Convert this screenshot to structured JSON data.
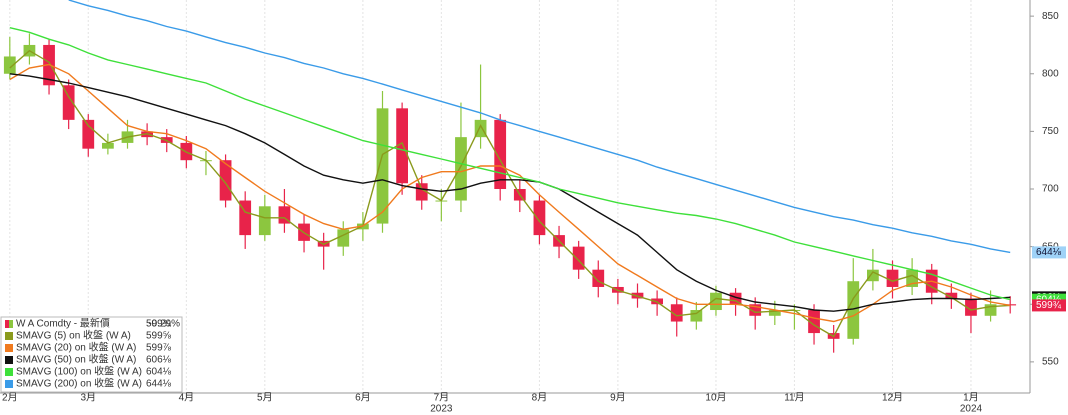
{
  "chart_data": {
    "type": "candlestick",
    "categories": [
      "2月",
      null,
      null,
      null,
      "3月",
      null,
      null,
      null,
      null,
      "4月",
      null,
      null,
      null,
      "5月",
      null,
      null,
      null,
      null,
      "6月",
      null,
      null,
      null,
      "7月",
      null,
      null,
      null,
      null,
      "8月",
      null,
      null,
      null,
      "9月",
      null,
      null,
      null,
      null,
      "10月",
      null,
      null,
      null,
      "11月",
      null,
      null,
      null,
      null,
      "12月",
      null,
      null,
      null,
      "1月",
      null,
      null
    ],
    "x_groups": [
      {
        "label": "2023",
        "category": "7月"
      },
      {
        "label": "2024",
        "category": "1月"
      }
    ],
    "candles": {
      "name": "W A Comdty - 最新價",
      "legend_value": "599¾",
      "change": "-0.29%",
      "up_color": "#8cc63f",
      "down_color": "#e8234a",
      "open": [
        800,
        815,
        825,
        790,
        760,
        735,
        740,
        750,
        745,
        740,
        725,
        725,
        690,
        660,
        685,
        670,
        655,
        650,
        665,
        670,
        770,
        705,
        690,
        690,
        745,
        760,
        700,
        690,
        660,
        650,
        630,
        615,
        610,
        605,
        600,
        585,
        595,
        610,
        600,
        590,
        595,
        595,
        575,
        570,
        620,
        630,
        615,
        630,
        610,
        605,
        590,
        600
      ],
      "high": [
        832,
        835,
        830,
        795,
        765,
        748,
        760,
        757,
        752,
        746,
        733,
        730,
        698,
        695,
        700,
        678,
        662,
        672,
        680,
        785,
        775,
        712,
        700,
        775,
        808,
        765,
        708,
        695,
        668,
        655,
        638,
        622,
        618,
        612,
        606,
        602,
        616,
        614,
        606,
        603,
        600,
        600,
        582,
        640,
        648,
        638,
        640,
        635,
        618,
        610,
        612,
        607
      ],
      "low": [
        795,
        808,
        782,
        752,
        728,
        730,
        735,
        738,
        732,
        718,
        712,
        684,
        648,
        655,
        662,
        645,
        630,
        642,
        655,
        662,
        695,
        682,
        672,
        680,
        735,
        690,
        680,
        652,
        640,
        622,
        606,
        600,
        597,
        590,
        572,
        578,
        590,
        590,
        578,
        582,
        578,
        565,
        558,
        565,
        612,
        605,
        608,
        600,
        596,
        575,
        585,
        592
      ],
      "close": [
        815,
        825,
        790,
        760,
        735,
        740,
        750,
        745,
        740,
        725,
        725,
        690,
        660,
        685,
        670,
        655,
        650,
        665,
        670,
        770,
        705,
        690,
        690,
        745,
        760,
        700,
        690,
        660,
        650,
        630,
        615,
        610,
        605,
        600,
        585,
        595,
        610,
        600,
        590,
        595,
        595,
        575,
        570,
        620,
        630,
        615,
        630,
        610,
        605,
        590,
        600,
        599
      ]
    },
    "series": [
      {
        "name": "SMAVG (5)  on 收盤 (W A)",
        "legend_value": "599⅝",
        "color": "#8a9a1c",
        "values": [
          805,
          820,
          810,
          780,
          755,
          740,
          745,
          748,
          742,
          732,
          725,
          705,
          680,
          675,
          675,
          662,
          652,
          660,
          668,
          730,
          740,
          700,
          690,
          720,
          755,
          725,
          695,
          672,
          655,
          638,
          620,
          612,
          607,
          602,
          590,
          592,
          605,
          603,
          593,
          594,
          595,
          582,
          572,
          605,
          628,
          620,
          625,
          615,
          606,
          595,
          598,
          599
        ]
      },
      {
        "name": "SMAVG (20)  on 收盤 (W A)",
        "legend_value": "599⅞",
        "color": "#f07a1e",
        "values": [
          795,
          805,
          808,
          800,
          785,
          770,
          755,
          750,
          748,
          742,
          735,
          722,
          710,
          698,
          688,
          678,
          670,
          665,
          668,
          680,
          700,
          710,
          715,
          715,
          720,
          720,
          712,
          695,
          680,
          665,
          650,
          635,
          625,
          615,
          605,
          600,
          600,
          600,
          598,
          595,
          592,
          588,
          585,
          590,
          600,
          612,
          618,
          620,
          615,
          608,
          602,
          599
        ]
      },
      {
        "name": "SMAVG (50)  on 收盤 (W A)",
        "legend_value": "606⅛",
        "color": "#111111",
        "values": [
          800,
          798,
          795,
          792,
          788,
          784,
          780,
          775,
          770,
          765,
          760,
          755,
          748,
          740,
          730,
          720,
          712,
          708,
          705,
          708,
          703,
          700,
          698,
          700,
          705,
          708,
          708,
          706,
          700,
          690,
          680,
          670,
          660,
          645,
          630,
          620,
          612,
          606,
          602,
          600,
          598,
          595,
          594,
          596,
          600,
          602,
          604,
          605,
          605,
          604,
          605,
          606
        ]
      },
      {
        "name": "SMAVG (100)  on 收盤 (W A)",
        "legend_value": "604⅛",
        "color": "#3ee03a",
        "values": [
          840,
          836,
          830,
          825,
          818,
          812,
          808,
          804,
          800,
          796,
          792,
          785,
          778,
          772,
          766,
          760,
          754,
          748,
          742,
          738,
          734,
          730,
          726,
          722,
          718,
          714,
          710,
          706,
          700,
          696,
          692,
          688,
          685,
          682,
          679,
          677,
          674,
          670,
          665,
          660,
          654,
          650,
          646,
          642,
          638,
          634,
          630,
          626,
          620,
          614,
          608,
          604
        ]
      },
      {
        "name": "SMAVG (200)  on 收盤 (W A)",
        "legend_value": "644⅛",
        "color": "#3a9be8",
        "values": [
          null,
          null,
          null,
          864,
          859,
          855,
          850,
          846,
          841,
          837,
          832,
          827,
          823,
          818,
          814,
          809,
          805,
          800,
          796,
          791,
          786,
          781,
          776,
          771,
          766,
          760,
          755,
          750,
          745,
          740,
          735,
          730,
          725,
          719,
          714,
          709,
          704,
          699,
          694,
          689,
          684,
          680,
          676,
          673,
          669,
          666,
          662,
          659,
          655,
          652,
          648,
          645
        ]
      }
    ],
    "ylim": [
      523,
      864
    ],
    "yticks": [
      550,
      600,
      650,
      700,
      750,
      800,
      850
    ],
    "grid": true
  }
}
